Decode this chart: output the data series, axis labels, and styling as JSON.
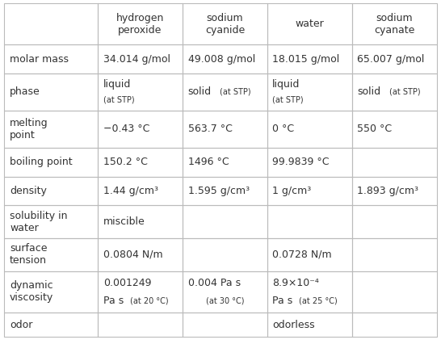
{
  "col_headers": [
    "",
    "hydrogen\nperoxide",
    "sodium\ncyanide",
    "water",
    "sodium\ncyanate"
  ],
  "rows": [
    {
      "label": "molar mass",
      "cells": [
        "34.014 g/mol",
        "49.008 g/mol",
        "18.015 g/mol",
        "65.007 g/mol"
      ]
    },
    {
      "label": "phase",
      "cells": [
        "liquid|(at STP)",
        "solid|(at STP)",
        "liquid|(at STP)",
        "solid|(at STP)"
      ]
    },
    {
      "label": "melting\npoint",
      "cells": [
        "−0.43 °C",
        "563.7 °C",
        "0 °C",
        "550 °C"
      ]
    },
    {
      "label": "boiling point",
      "cells": [
        "150.2 °C",
        "1496 °C",
        "99.9839 °C",
        ""
      ]
    },
    {
      "label": "density",
      "cells": [
        "1.44 g/cm³",
        "1.595 g/cm³",
        "1 g/cm³",
        "1.893 g/cm³"
      ]
    },
    {
      "label": "solubility in\nwater",
      "cells": [
        "miscible",
        "",
        "",
        ""
      ]
    },
    {
      "label": "surface\ntension",
      "cells": [
        "0.0804 N/m",
        "",
        "0.0728 N/m",
        ""
      ]
    },
    {
      "label": "dynamic\nviscosity",
      "cells": [
        "0.001249|Pa s|(at 20 °C)",
        "0.004 Pa s|(at 30 °C)",
        "8.9×10⁻⁴|Pa s|(at 25 °C)",
        ""
      ]
    },
    {
      "label": "odor",
      "cells": [
        "",
        "",
        "odorless",
        ""
      ]
    }
  ],
  "bg_color": "#ffffff",
  "grid_color": "#bbbbbb",
  "text_color": "#333333",
  "header_font_size": 9.0,
  "cell_font_size": 9.0,
  "label_font_size": 9.0,
  "small_font_size": 7.0
}
